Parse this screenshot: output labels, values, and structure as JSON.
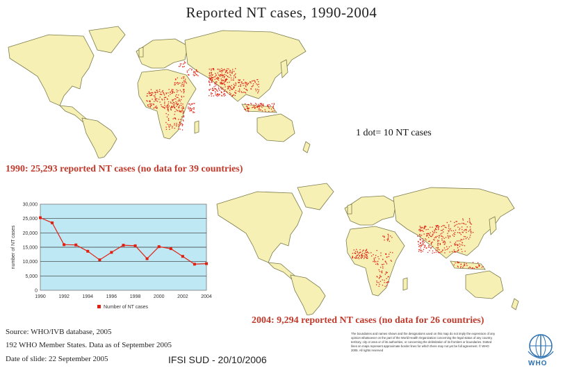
{
  "title": "Reported NT cases, 1990-2004",
  "dot_legend": "1 dot= 10 NT cases",
  "caption_1990": "1990: 25,293 reported NT cases (no data for 39 countries)",
  "caption_2004": "2004: 9,294 reported NT cases (no data for 26 countries)",
  "source_lines": [
    "Source: WHO/IVB database, 2005",
    "192 WHO Member States. Data as of September 2005",
    "Date of slide: 22 September 2005"
  ],
  "footer": "IFSI SUD - 20/10/2006",
  "disclaimer": "The boundaries and names shown and the designations used on this map do not imply the expression of any opinion whatsoever on the part of the World Health Organization concerning the legal status of any country, territory, city or area or of its authorities, or concerning the delimitation of its frontiers or boundaries. Dotted lines on maps represent approximate border lines for which there may not yet be full agreement. © WHO 2005. All rights reserved",
  "who_logo_text": "WHO",
  "colors": {
    "land": "#f7f0b4",
    "coast": "#7a7a4a",
    "dots": "#e02010",
    "plot_bg": "#bfe8f5",
    "line": "#e02010",
    "caption": "#c0392b"
  },
  "chart_data": {
    "type": "line",
    "title": "",
    "xlabel": "",
    "ylabel": "number of NT cases",
    "x": [
      1990,
      1991,
      1992,
      1993,
      1994,
      1995,
      1996,
      1997,
      1998,
      1999,
      2000,
      2001,
      2002,
      2003,
      2004
    ],
    "y": [
      25293,
      23500,
      15900,
      15800,
      13600,
      10600,
      13200,
      15700,
      15500,
      11000,
      15200,
      14500,
      11800,
      9100,
      9294
    ],
    "xticks": [
      "1990",
      "1992",
      "1994",
      "1996",
      "1998",
      "2000",
      "2002",
      "2004"
    ],
    "yticks": [
      "0",
      "5,000",
      "10,000",
      "15,000",
      "20,000",
      "25,000",
      "30,000"
    ],
    "xlim": [
      1990,
      2004
    ],
    "ylim": [
      0,
      30000
    ],
    "grid": true,
    "legend": "Number of NT cases",
    "legend_position": "bottom-center"
  }
}
